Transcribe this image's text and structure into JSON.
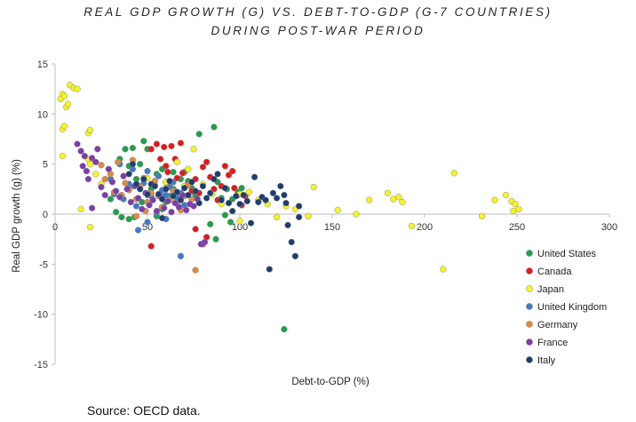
{
  "chart_data": {
    "type": "scatter",
    "title": [
      "REAL GDP GROWTH (G) VS. DEBT-TO-GDP (G-7 COUNTRIES)",
      "DURING POST-WAR PERIOD"
    ],
    "xlabel": "Debt-to-GDP (%)",
    "ylabel": "Real GDP growth (g)  (%)",
    "xlim": [
      0,
      300
    ],
    "ylim": [
      -15,
      15
    ],
    "xticks": [
      0,
      50,
      100,
      150,
      200,
      250,
      300
    ],
    "yticks": [
      -15,
      -10,
      -5,
      0,
      5,
      10,
      15
    ],
    "grid": false,
    "legend_position": "right",
    "source": "Source: OECD data.",
    "series": [
      {
        "name": "United States",
        "color": "#1fa14a",
        "points": [
          [
            35,
            5.5
          ],
          [
            38,
            6.5
          ],
          [
            40,
            4.8
          ],
          [
            42,
            6.6
          ],
          [
            44,
            3.5
          ],
          [
            46,
            5
          ],
          [
            48,
            7.3
          ],
          [
            50,
            6.5
          ],
          [
            52,
            2.5
          ],
          [
            55,
            4
          ],
          [
            58,
            4.5
          ],
          [
            60,
            3.2
          ],
          [
            62,
            2.8
          ],
          [
            64,
            4.2
          ],
          [
            66,
            2.2
          ],
          [
            68,
            3.5
          ],
          [
            70,
            4.2
          ],
          [
            72,
            3.3
          ],
          [
            74,
            2.6
          ],
          [
            76,
            1.9
          ],
          [
            78,
            8
          ],
          [
            60,
            1.2
          ],
          [
            62,
            1.8
          ],
          [
            64,
            2.5
          ],
          [
            58,
            0.5
          ],
          [
            55,
            -0.2
          ],
          [
            50,
            1.9
          ],
          [
            47,
            1.2
          ],
          [
            43,
            -0.3
          ],
          [
            40,
            -0.5
          ],
          [
            36,
            -0.3
          ],
          [
            33,
            0.2
          ],
          [
            30,
            1.5
          ],
          [
            86,
            8.7
          ],
          [
            88,
            3.2
          ],
          [
            90,
            1.6
          ],
          [
            93,
            2.5
          ],
          [
            96,
            1.5
          ],
          [
            99,
            2.2
          ],
          [
            101,
            2.6
          ],
          [
            95,
            -0.8
          ],
          [
            92,
            -0.1
          ],
          [
            87,
            -2.5
          ],
          [
            84,
            -1
          ],
          [
            124,
            -11.5
          ]
        ]
      },
      {
        "name": "Canada",
        "color": "#e8171a",
        "points": [
          [
            52,
            6.5
          ],
          [
            55,
            7
          ],
          [
            57,
            5.5
          ],
          [
            59,
            6.7
          ],
          [
            61,
            4.2
          ],
          [
            63,
            6.8
          ],
          [
            65,
            5.5
          ],
          [
            66,
            3.6
          ],
          [
            68,
            7.1
          ],
          [
            69,
            4.1
          ],
          [
            70,
            2.8
          ],
          [
            72,
            3
          ],
          [
            74,
            2.3
          ],
          [
            76,
            3.5
          ],
          [
            78,
            2.1
          ],
          [
            80,
            4.7
          ],
          [
            82,
            5.2
          ],
          [
            84,
            3.7
          ],
          [
            86,
            2.5
          ],
          [
            88,
            1.4
          ],
          [
            90,
            2.8
          ],
          [
            92,
            4.8
          ],
          [
            94,
            3.9
          ],
          [
            96,
            4.3
          ],
          [
            97,
            2.6
          ],
          [
            99,
            1.9
          ],
          [
            101,
            0.9
          ],
          [
            103,
            1.8
          ],
          [
            76,
            -1.5
          ],
          [
            82,
            -2.3
          ],
          [
            80,
            -3
          ],
          [
            52,
            -3.2
          ],
          [
            60,
            4.8
          ]
        ]
      },
      {
        "name": "Japan",
        "color": "#f5f520",
        "points": [
          [
            3,
            11.5
          ],
          [
            4,
            12
          ],
          [
            5,
            11.8
          ],
          [
            6,
            10.7
          ],
          [
            7,
            11
          ],
          [
            8,
            12.9
          ],
          [
            10,
            12.6
          ],
          [
            12,
            12.5
          ],
          [
            4,
            8.5
          ],
          [
            5,
            8.8
          ],
          [
            18,
            8.1
          ],
          [
            19,
            8.4
          ],
          [
            4,
            5.8
          ],
          [
            18,
            5.5
          ],
          [
            19,
            5
          ],
          [
            22,
            4
          ],
          [
            14,
            0.5
          ],
          [
            19,
            -1.3
          ],
          [
            25,
            3
          ],
          [
            30,
            3.5
          ],
          [
            40,
            2.5
          ],
          [
            50,
            3.6
          ],
          [
            60,
            3.2
          ],
          [
            70,
            2.8
          ],
          [
            72,
            4.5
          ],
          [
            75,
            6.5
          ],
          [
            80,
            3
          ],
          [
            85,
            2
          ],
          [
            90,
            1
          ],
          [
            100,
            2
          ],
          [
            105,
            2.2
          ],
          [
            110,
            1.4
          ],
          [
            115,
            1
          ],
          [
            120,
            -0.3
          ],
          [
            125,
            0.8
          ],
          [
            130,
            0.5
          ],
          [
            137,
            -0.2
          ],
          [
            140,
            2.7
          ],
          [
            153,
            0.4
          ],
          [
            163,
            0
          ],
          [
            170,
            1.4
          ],
          [
            180,
            2.1
          ],
          [
            183,
            1.5
          ],
          [
            186,
            1.7
          ],
          [
            188,
            1.2
          ],
          [
            193,
            -1.2
          ],
          [
            210,
            -5.5
          ],
          [
            216,
            4.1
          ],
          [
            231,
            -0.2
          ],
          [
            238,
            1.4
          ],
          [
            244,
            1.9
          ],
          [
            247,
            1.3
          ],
          [
            248,
            0.3
          ],
          [
            249,
            1
          ],
          [
            251,
            0.5
          ],
          [
            100,
            -0.7
          ],
          [
            66,
            5.2
          ]
        ]
      },
      {
        "name": "United Kingdom",
        "color": "#3e79cc",
        "points": [
          [
            30,
            3.5
          ],
          [
            32,
            2
          ],
          [
            35,
            5
          ],
          [
            37,
            1.5
          ],
          [
            40,
            2.8
          ],
          [
            42,
            4.5
          ],
          [
            44,
            0.8
          ],
          [
            46,
            2.5
          ],
          [
            48,
            3.1
          ],
          [
            50,
            4.3
          ],
          [
            52,
            1.8
          ],
          [
            54,
            2.9
          ],
          [
            56,
            3.8
          ],
          [
            58,
            2.4
          ],
          [
            60,
            1.9
          ],
          [
            62,
            2.7
          ],
          [
            64,
            3.2
          ],
          [
            66,
            1.6
          ],
          [
            68,
            2.1
          ],
          [
            70,
            0.9
          ],
          [
            45,
            -1.6
          ],
          [
            50,
            -0.8
          ],
          [
            55,
            0.2
          ],
          [
            60,
            -0.5
          ],
          [
            68,
            -4.2
          ],
          [
            40,
            3
          ]
        ]
      },
      {
        "name": "Germany",
        "color": "#e08a3c",
        "points": [
          [
            25,
            4.9
          ],
          [
            27,
            3.5
          ],
          [
            30,
            4
          ],
          [
            32,
            2.2
          ],
          [
            34,
            5.2
          ],
          [
            36,
            1.9
          ],
          [
            38,
            3.1
          ],
          [
            40,
            2.4
          ],
          [
            42,
            5.4
          ],
          [
            44,
            1.5
          ],
          [
            46,
            2.8
          ],
          [
            48,
            3.6
          ],
          [
            50,
            1.2
          ],
          [
            52,
            2.1
          ],
          [
            54,
            3.3
          ],
          [
            56,
            1.8
          ],
          [
            58,
            0.7
          ],
          [
            60,
            2.6
          ],
          [
            62,
            1.4
          ],
          [
            64,
            2.3
          ],
          [
            66,
            1.1
          ],
          [
            68,
            0.4
          ],
          [
            70,
            1.8
          ],
          [
            72,
            2.9
          ],
          [
            74,
            1.5
          ],
          [
            76,
            -5.6
          ],
          [
            44,
            -0.2
          ],
          [
            49,
            0.3
          ]
        ]
      },
      {
        "name": "France",
        "color": "#7e3bb0",
        "points": [
          [
            12,
            7
          ],
          [
            14,
            6.3
          ],
          [
            16,
            5.8
          ],
          [
            17,
            4.3
          ],
          [
            18,
            3.5
          ],
          [
            20,
            5.6
          ],
          [
            22,
            5.2
          ],
          [
            23,
            6.5
          ],
          [
            25,
            2.7
          ],
          [
            27,
            1.9
          ],
          [
            29,
            4.5
          ],
          [
            31,
            3.2
          ],
          [
            33,
            2.3
          ],
          [
            35,
            1.7
          ],
          [
            37,
            3.8
          ],
          [
            39,
            2.5
          ],
          [
            41,
            1.2
          ],
          [
            43,
            2.8
          ],
          [
            45,
            1.6
          ],
          [
            47,
            0.5
          ],
          [
            49,
            2.1
          ],
          [
            51,
            0.9
          ],
          [
            53,
            1.4
          ],
          [
            55,
            0.3
          ],
          [
            57,
            1.8
          ],
          [
            59,
            0.6
          ],
          [
            61,
            1.3
          ],
          [
            63,
            0.2
          ],
          [
            65,
            1.1
          ],
          [
            67,
            0.7
          ],
          [
            69,
            1.9
          ],
          [
            71,
            0.4
          ],
          [
            73,
            1
          ],
          [
            75,
            0.8
          ],
          [
            77,
            1.5
          ],
          [
            79,
            -3
          ],
          [
            81,
            -2.8
          ],
          [
            20,
            0.6
          ],
          [
            15,
            4.8
          ]
        ]
      },
      {
        "name": "Italy",
        "color": "#1d3d72",
        "points": [
          [
            40,
            4
          ],
          [
            42,
            5
          ],
          [
            44,
            3
          ],
          [
            46,
            2.5
          ],
          [
            48,
            3.5
          ],
          [
            50,
            2
          ],
          [
            52,
            3
          ],
          [
            54,
            2.8
          ],
          [
            56,
            2
          ],
          [
            58,
            1.5
          ],
          [
            60,
            2.5
          ],
          [
            62,
            3.3
          ],
          [
            64,
            1.8
          ],
          [
            66,
            2.2
          ],
          [
            68,
            1.4
          ],
          [
            70,
            2.6
          ],
          [
            72,
            1.9
          ],
          [
            74,
            3.2
          ],
          [
            76,
            2.3
          ],
          [
            78,
            1.1
          ],
          [
            80,
            2.8
          ],
          [
            82,
            1.6
          ],
          [
            84,
            2.1
          ],
          [
            86,
            3.5
          ],
          [
            88,
            4
          ],
          [
            90,
            1.4
          ],
          [
            92,
            2.6
          ],
          [
            94,
            1.1
          ],
          [
            96,
            0.3
          ],
          [
            98,
            1.8
          ],
          [
            100,
            1
          ],
          [
            102,
            1.9
          ],
          [
            104,
            1.3
          ],
          [
            106,
            -0.9
          ],
          [
            108,
            3.7
          ],
          [
            110,
            1.2
          ],
          [
            112,
            1.7
          ],
          [
            114,
            1.4
          ],
          [
            116,
            -5.5
          ],
          [
            118,
            2.1
          ],
          [
            120,
            1.6
          ],
          [
            122,
            2.8
          ],
          [
            124,
            1.9
          ],
          [
            125,
            1.1
          ],
          [
            126,
            -1.1
          ],
          [
            128,
            -2.8
          ],
          [
            130,
            -4.2
          ],
          [
            132,
            -0.3
          ],
          [
            132,
            0.8
          ],
          [
            58,
            -0.4
          ]
        ]
      }
    ]
  }
}
